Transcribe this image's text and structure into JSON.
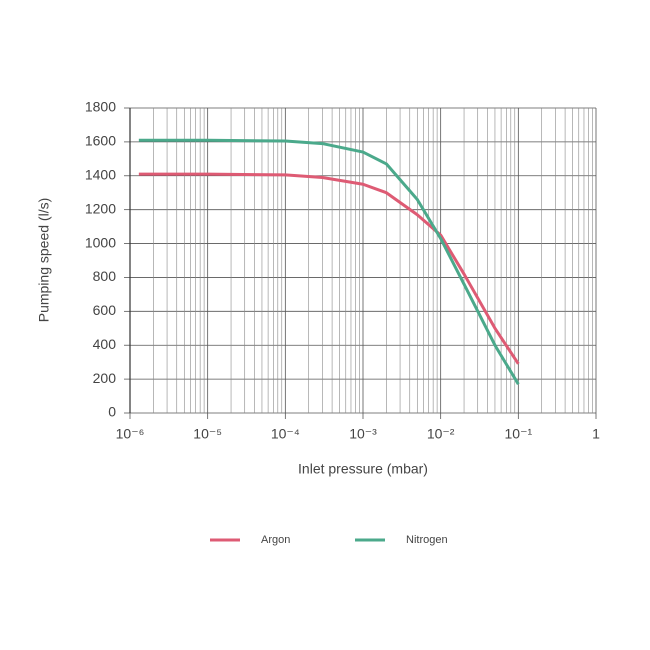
{
  "chart_data": {
    "type": "line",
    "x_label": "Inlet pressure (mbar)",
    "y_label": "Pumping speed (l/s)",
    "xlog": true,
    "grid": true,
    "legend": "bottom",
    "xlim": [
      1e-06,
      1
    ],
    "xticks": [
      {
        "value": 1e-06,
        "label": "10⁻⁶"
      },
      {
        "value": 1e-05,
        "label": "10⁻⁵"
      },
      {
        "value": 0.0001,
        "label": "10⁻⁴"
      },
      {
        "value": 0.001,
        "label": "10⁻³"
      },
      {
        "value": 0.01,
        "label": "10⁻²"
      },
      {
        "value": 0.1,
        "label": "10⁻¹"
      },
      1
    ],
    "ylim": [
      0,
      1800
    ],
    "yticks": [
      0,
      200,
      400,
      600,
      800,
      1000,
      1200,
      1400,
      1600,
      1800
    ],
    "x": [
      1.3e-06,
      1e-05,
      0.0001,
      0.0003,
      0.001,
      0.002,
      0.005,
      0.01,
      0.02,
      0.05,
      0.1
    ],
    "series": [
      {
        "name": "Argon",
        "color": "#de5b74",
        "values": [
          1410,
          1410,
          1405,
          1390,
          1350,
          1300,
          1170,
          1050,
          820,
          500,
          290
        ]
      },
      {
        "name": "Nitrogen",
        "color": "#4ba98b",
        "values": [
          1610,
          1610,
          1605,
          1590,
          1540,
          1470,
          1260,
          1030,
          760,
          400,
          170
        ]
      }
    ]
  }
}
